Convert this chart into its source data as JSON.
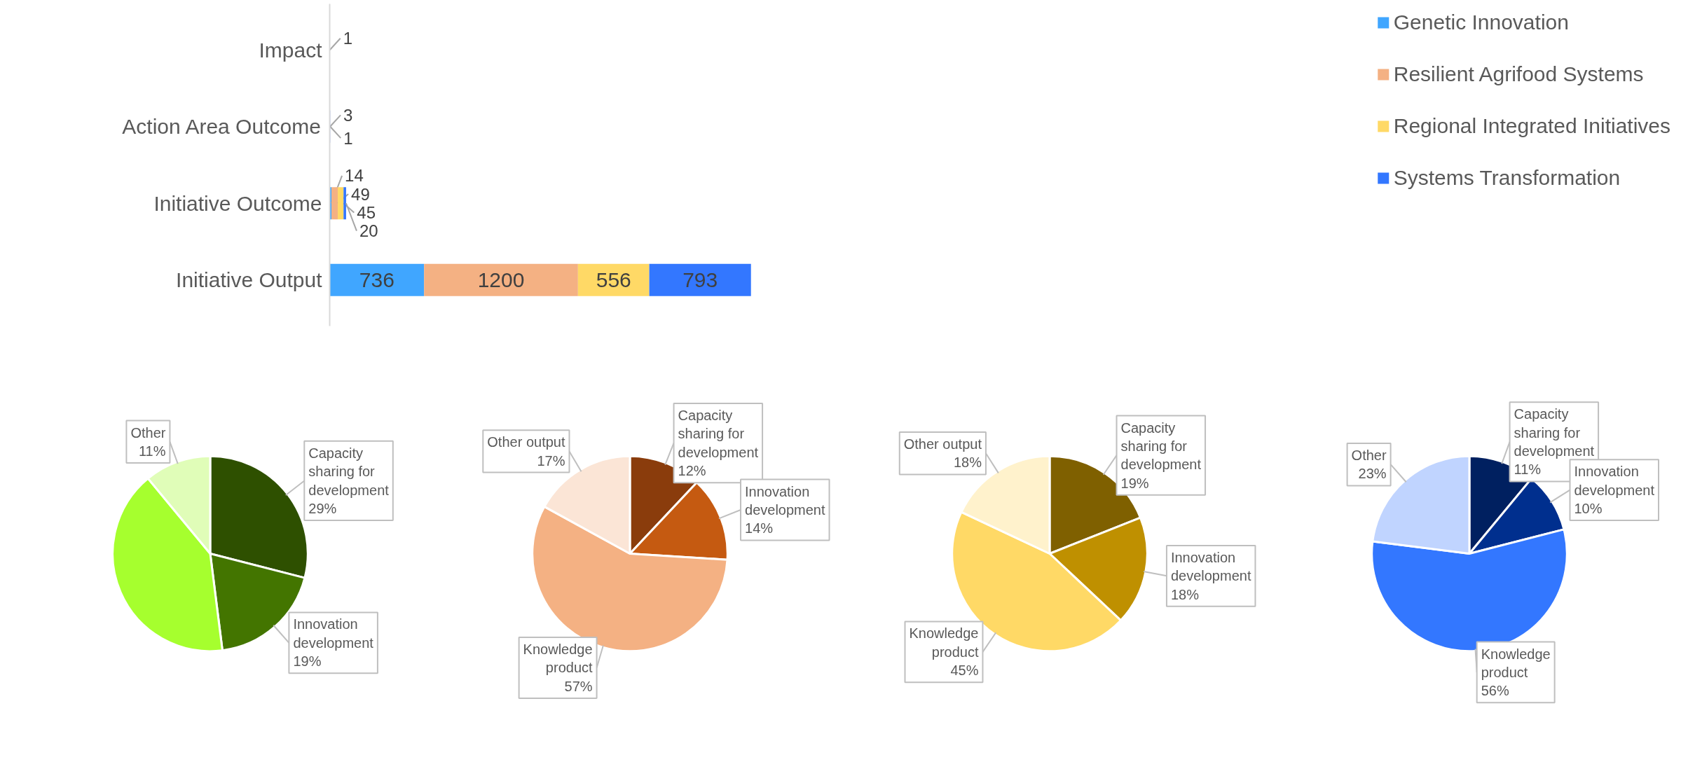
{
  "chart_data": [
    {
      "type": "bar",
      "orientation": "horizontal",
      "stacked": true,
      "data_labels": true,
      "legend": "top right",
      "categories": [
        "Impact",
        "Action Area Outcome",
        "Initiative Outcome",
        "Initiative Output"
      ],
      "series": [
        {
          "name": "Genetic Innovation",
          "color": "#40a6ff",
          "values": [
            null,
            null,
            14,
            736
          ]
        },
        {
          "name": "Resilient Agrifood Systems",
          "color": "#f4b183",
          "values": [
            1,
            3,
            49,
            1200
          ]
        },
        {
          "name": "Regional Integrated Initiatives",
          "color": "#ffd966",
          "values": [
            null,
            null,
            45,
            556
          ]
        },
        {
          "name": "Systems Transformation",
          "color": "#3377ff",
          "values": [
            null,
            1,
            20,
            793
          ]
        }
      ]
    },
    {
      "type": "pie",
      "categories": [
        "Capacity sharing for development",
        "Innovation development",
        null,
        "Other"
      ],
      "values": [
        29,
        19,
        41,
        11
      ],
      "value_labels": [
        "29%",
        "19%",
        null,
        "11%"
      ],
      "colors": [
        "#2e5000",
        "#437500",
        "#a6ff2e",
        "#e0fdb8"
      ]
    },
    {
      "type": "pie",
      "categories": [
        "Capacity sharing for development",
        "Innovation development",
        "Knowledge product",
        "Other output"
      ],
      "values": [
        12,
        14,
        57,
        17
      ],
      "value_labels": [
        "12%",
        "14%",
        "57%",
        "17%"
      ],
      "colors": [
        "#8a3c0c",
        "#c55a11",
        "#f4b183",
        "#fbe5d6"
      ]
    },
    {
      "type": "pie",
      "categories": [
        "Capacity sharing for development",
        "Innovation development",
        "Knowledge product",
        "Other output"
      ],
      "values": [
        19,
        18,
        45,
        18
      ],
      "value_labels": [
        "19%",
        "18%",
        "45%",
        "18%"
      ],
      "colors": [
        "#7f6000",
        "#bf9000",
        "#ffd966",
        "#fff2cc"
      ]
    },
    {
      "type": "pie",
      "categories": [
        "Capacity sharing for development",
        "Innovation development",
        "Knowledge product",
        "Other"
      ],
      "values": [
        11,
        10,
        56,
        23
      ],
      "value_labels": [
        "11%",
        "10%",
        "56%",
        "23%"
      ],
      "colors": [
        "#002060",
        "#002f8e",
        "#3377ff",
        "#c0d4ff"
      ]
    }
  ]
}
